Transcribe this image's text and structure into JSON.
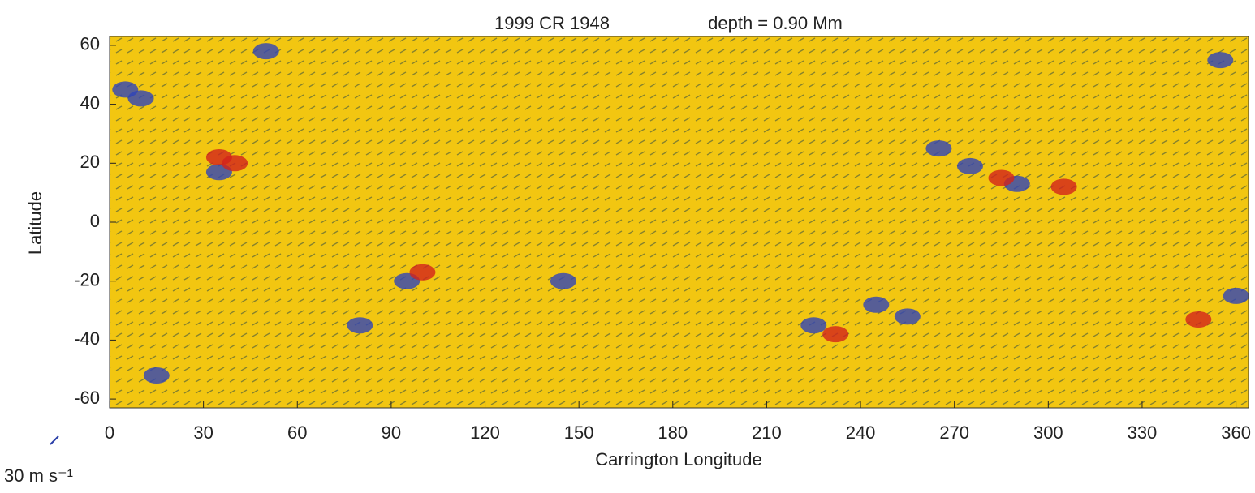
{
  "chart_data": {
    "type": "scatter",
    "title": "1999 CR 1948",
    "subtitle": "depth = 0.90 Mm",
    "x_label": "Carrington Longitude",
    "y_label": "Latitude",
    "scale_label": "30 m s⁻¹",
    "background": "#f2c611",
    "xlim": [
      0,
      364
    ],
    "ylim": [
      -63,
      63
    ],
    "xticks": [
      0,
      30,
      60,
      90,
      120,
      150,
      180,
      210,
      240,
      270,
      300,
      330,
      360
    ],
    "yticks": [
      -60,
      -40,
      -20,
      0,
      20,
      40,
      60
    ],
    "series": [
      {
        "color": "#2f44b8",
        "x": [
          5,
          10,
          35,
          95,
          80,
          15,
          145,
          265,
          275,
          290,
          245,
          255,
          225,
          360,
          50,
          355
        ],
        "values": [
          45,
          42,
          17,
          -20,
          -35,
          -52,
          -20,
          25,
          19,
          13,
          -28,
          -32,
          -35,
          -25,
          58,
          55
        ]
      },
      {
        "color": "#d2231c",
        "x": [
          35,
          40,
          100,
          285,
          305,
          232,
          348
        ],
        "values": [
          22,
          20,
          -17,
          15,
          12,
          -38,
          -33
        ]
      }
    ]
  }
}
